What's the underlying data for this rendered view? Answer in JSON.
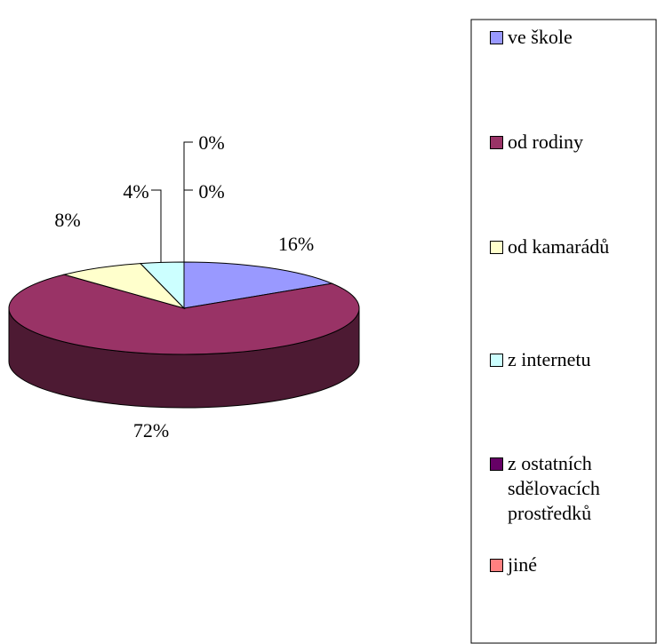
{
  "chart_data": {
    "type": "pie",
    "categories": [
      "ve škole",
      "od rodiny",
      "od kamarádů",
      "z internetu",
      "z ostatních sdělovacích prostředků",
      "jiné"
    ],
    "values": [
      16,
      72,
      8,
      4,
      0,
      0
    ],
    "value_labels": [
      "16%",
      "72%",
      "8%",
      "4%",
      "0%",
      "0%"
    ],
    "colors": [
      "#9999ff",
      "#993366",
      "#ffffcc",
      "#ccffff",
      "#660066",
      "#ff8080"
    ],
    "legend": "right"
  }
}
